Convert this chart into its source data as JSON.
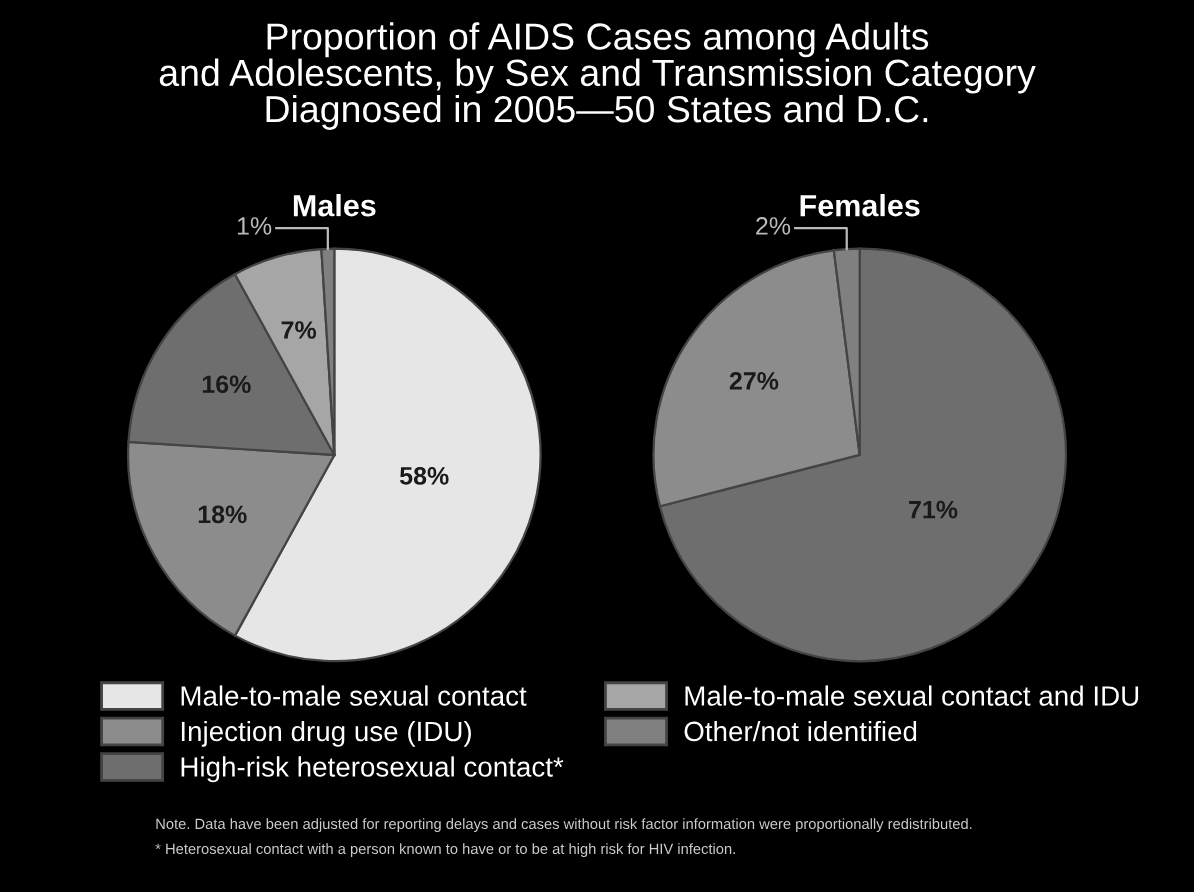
{
  "chart_data": [
    {
      "type": "pie",
      "title": "Males",
      "categories": [
        "Male-to-male sexual contact",
        "Injection drug use (IDU)",
        "High-risk heterosexual contact*",
        "Male-to-male sexual contact and IDU",
        "Other/not identified"
      ],
      "values": [
        58,
        18,
        16,
        7,
        1
      ],
      "colors": [
        "#e6e6e6",
        "#8c8c8c",
        "#6e6e6e",
        "#a6a6a6",
        "#808080"
      ],
      "value_labels": [
        "58%",
        "18%",
        "16%",
        "7%",
        "1%"
      ],
      "legend": "bottom",
      "annotations": [
        "Proportion of AIDS Cases among Adults\nand Adolescents, by Sex and Transmission Category\nDiagnosed in 2005—50 States and D.C."
      ]
    },
    {
      "type": "pie",
      "title": "Females",
      "categories": [
        null,
        null,
        null
      ],
      "values": [
        71,
        27,
        2
      ],
      "colors": [
        "#6e6e6e",
        "#8c8c8c",
        "#808080"
      ],
      "value_labels": [
        "71%",
        "27%",
        "2%"
      ],
      "annotations": [
        "Note. Data have been adjusted for reporting delays and cases without risk factor information were proportionally redistributed.",
        "* Heterosexual contact with a person known to have or to be at high risk for HIV infection."
      ]
    }
  ]
}
